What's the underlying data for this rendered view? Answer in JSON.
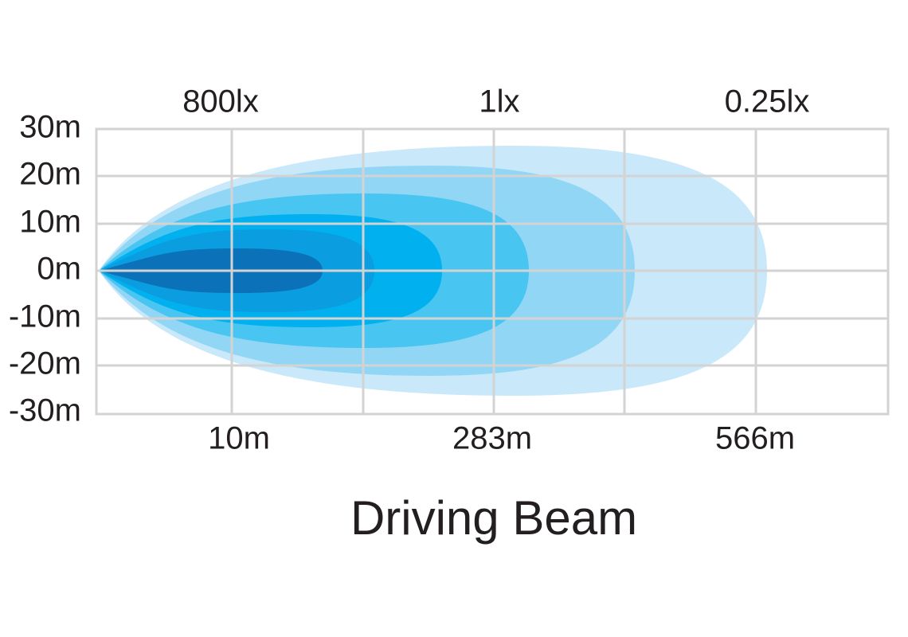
{
  "top_labels": [
    "800lx",
    "1lx",
    "0.25lx"
  ],
  "y_labels": [
    "30m",
    "20m",
    "10m",
    "0m",
    "-10m",
    "-20m",
    "-30m"
  ],
  "x_labels": [
    "10m",
    "283m",
    "566m"
  ],
  "title": "Driving Beam"
}
